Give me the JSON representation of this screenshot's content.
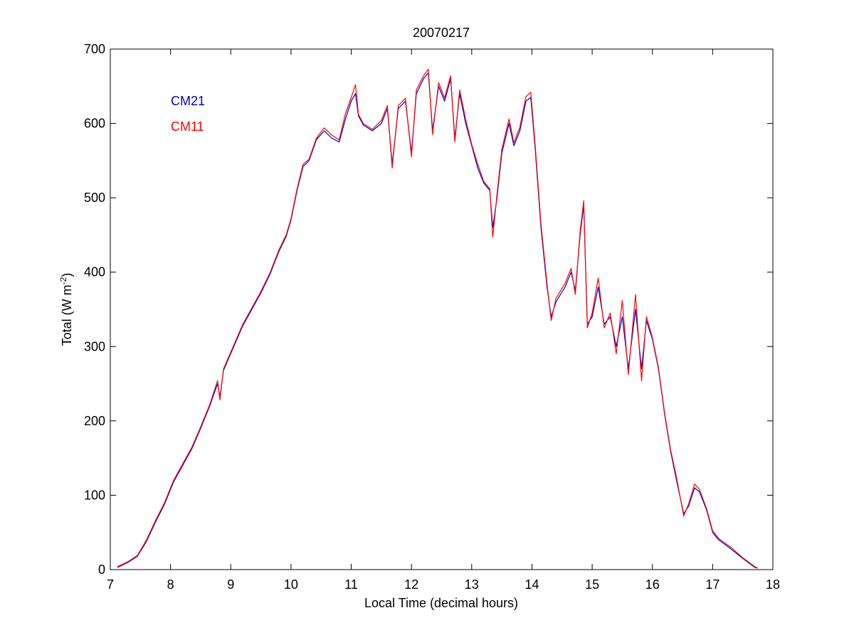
{
  "chart_data": {
    "type": "line",
    "title": "20070217",
    "xlabel": "Local Time (decimal hours)",
    "ylabel": {
      "main": "Total (W m",
      "superscript": "-2",
      "close": ")"
    },
    "xlim": [
      7,
      18
    ],
    "ylim": [
      0,
      700
    ],
    "x_ticks": [
      7,
      8,
      9,
      10,
      11,
      12,
      13,
      14,
      15,
      16,
      17,
      18
    ],
    "y_ticks": [
      0,
      100,
      200,
      300,
      400,
      500,
      600,
      700
    ],
    "grid": false,
    "legend_placement": "top-left",
    "series": [
      {
        "name": "CM21",
        "color": "#0000cc",
        "points": [
          [
            7.12,
            3
          ],
          [
            7.3,
            10
          ],
          [
            7.45,
            18
          ],
          [
            7.6,
            38
          ],
          [
            7.75,
            64
          ],
          [
            7.9,
            88
          ],
          [
            8.05,
            118
          ],
          [
            8.2,
            140
          ],
          [
            8.35,
            162
          ],
          [
            8.5,
            190
          ],
          [
            8.65,
            220
          ],
          [
            8.78,
            250
          ],
          [
            8.82,
            232
          ],
          [
            8.88,
            268
          ],
          [
            9.05,
            300
          ],
          [
            9.2,
            328
          ],
          [
            9.35,
            350
          ],
          [
            9.5,
            372
          ],
          [
            9.65,
            397
          ],
          [
            9.8,
            428
          ],
          [
            9.92,
            448
          ],
          [
            10.0,
            470
          ],
          [
            10.1,
            510
          ],
          [
            10.2,
            542
          ],
          [
            10.3,
            550
          ],
          [
            10.42,
            578
          ],
          [
            10.55,
            590
          ],
          [
            10.68,
            580
          ],
          [
            10.8,
            575
          ],
          [
            10.9,
            605
          ],
          [
            11.0,
            630
          ],
          [
            11.07,
            640
          ],
          [
            11.12,
            610
          ],
          [
            11.2,
            598
          ],
          [
            11.35,
            590
          ],
          [
            11.5,
            600
          ],
          [
            11.6,
            620
          ],
          [
            11.68,
            545
          ],
          [
            11.78,
            620
          ],
          [
            11.9,
            630
          ],
          [
            12.0,
            560
          ],
          [
            12.08,
            640
          ],
          [
            12.2,
            660
          ],
          [
            12.28,
            668
          ],
          [
            12.35,
            590
          ],
          [
            12.45,
            650
          ],
          [
            12.55,
            630
          ],
          [
            12.65,
            660
          ],
          [
            12.72,
            580
          ],
          [
            12.8,
            640
          ],
          [
            12.9,
            600
          ],
          [
            13.0,
            570
          ],
          [
            13.1,
            540
          ],
          [
            13.2,
            520
          ],
          [
            13.3,
            510
          ],
          [
            13.35,
            460
          ],
          [
            13.42,
            500
          ],
          [
            13.5,
            560
          ],
          [
            13.62,
            600
          ],
          [
            13.7,
            570
          ],
          [
            13.8,
            590
          ],
          [
            13.9,
            630
          ],
          [
            13.98,
            635
          ],
          [
            14.05,
            570
          ],
          [
            14.15,
            460
          ],
          [
            14.25,
            380
          ],
          [
            14.32,
            340
          ],
          [
            14.4,
            360
          ],
          [
            14.55,
            380
          ],
          [
            14.65,
            400
          ],
          [
            14.72,
            375
          ],
          [
            14.8,
            450
          ],
          [
            14.86,
            490
          ],
          [
            14.92,
            330
          ],
          [
            15.0,
            340
          ],
          [
            15.1,
            380
          ],
          [
            15.2,
            330
          ],
          [
            15.3,
            340
          ],
          [
            15.4,
            300
          ],
          [
            15.5,
            340
          ],
          [
            15.6,
            270
          ],
          [
            15.72,
            350
          ],
          [
            15.82,
            270
          ],
          [
            15.9,
            335
          ],
          [
            16.0,
            310
          ],
          [
            16.1,
            270
          ],
          [
            16.2,
            210
          ],
          [
            16.3,
            160
          ],
          [
            16.4,
            120
          ],
          [
            16.52,
            75
          ],
          [
            16.6,
            85
          ],
          [
            16.7,
            110
          ],
          [
            16.78,
            105
          ],
          [
            16.9,
            80
          ],
          [
            17.0,
            50
          ],
          [
            17.1,
            40
          ],
          [
            17.3,
            28
          ],
          [
            17.5,
            15
          ],
          [
            17.7,
            3
          ],
          [
            17.75,
            2
          ]
        ]
      },
      {
        "name": "CM11",
        "color": "#ff0000",
        "points": [
          [
            7.12,
            4
          ],
          [
            7.3,
            11
          ],
          [
            7.45,
            19
          ],
          [
            7.6,
            40
          ],
          [
            7.75,
            66
          ],
          [
            7.9,
            90
          ],
          [
            8.05,
            120
          ],
          [
            8.2,
            142
          ],
          [
            8.35,
            164
          ],
          [
            8.5,
            192
          ],
          [
            8.65,
            222
          ],
          [
            8.78,
            254
          ],
          [
            8.82,
            228
          ],
          [
            8.88,
            270
          ],
          [
            9.05,
            302
          ],
          [
            9.2,
            330
          ],
          [
            9.35,
            352
          ],
          [
            9.5,
            374
          ],
          [
            9.65,
            399
          ],
          [
            9.8,
            430
          ],
          [
            9.92,
            450
          ],
          [
            10.0,
            472
          ],
          [
            10.1,
            512
          ],
          [
            10.2,
            545
          ],
          [
            10.3,
            552
          ],
          [
            10.42,
            580
          ],
          [
            10.55,
            594
          ],
          [
            10.68,
            584
          ],
          [
            10.8,
            578
          ],
          [
            10.9,
            612
          ],
          [
            11.0,
            635
          ],
          [
            11.07,
            652
          ],
          [
            11.12,
            612
          ],
          [
            11.2,
            600
          ],
          [
            11.35,
            592
          ],
          [
            11.5,
            604
          ],
          [
            11.6,
            624
          ],
          [
            11.68,
            540
          ],
          [
            11.78,
            624
          ],
          [
            11.9,
            634
          ],
          [
            12.0,
            555
          ],
          [
            12.08,
            645
          ],
          [
            12.2,
            664
          ],
          [
            12.28,
            673
          ],
          [
            12.35,
            585
          ],
          [
            12.45,
            655
          ],
          [
            12.55,
            634
          ],
          [
            12.65,
            664
          ],
          [
            12.72,
            575
          ],
          [
            12.8,
            645
          ],
          [
            12.9,
            605
          ],
          [
            13.0,
            572
          ],
          [
            13.1,
            545
          ],
          [
            13.2,
            522
          ],
          [
            13.3,
            512
          ],
          [
            13.35,
            447
          ],
          [
            13.42,
            505
          ],
          [
            13.5,
            565
          ],
          [
            13.62,
            606
          ],
          [
            13.7,
            574
          ],
          [
            13.8,
            595
          ],
          [
            13.9,
            636
          ],
          [
            13.98,
            642
          ],
          [
            14.05,
            575
          ],
          [
            14.15,
            465
          ],
          [
            14.25,
            385
          ],
          [
            14.32,
            335
          ],
          [
            14.4,
            365
          ],
          [
            14.55,
            385
          ],
          [
            14.65,
            405
          ],
          [
            14.72,
            370
          ],
          [
            14.8,
            455
          ],
          [
            14.86,
            496
          ],
          [
            14.92,
            325
          ],
          [
            15.0,
            345
          ],
          [
            15.1,
            392
          ],
          [
            15.2,
            325
          ],
          [
            15.3,
            345
          ],
          [
            15.4,
            290
          ],
          [
            15.5,
            362
          ],
          [
            15.6,
            262
          ],
          [
            15.72,
            370
          ],
          [
            15.82,
            254
          ],
          [
            15.9,
            340
          ],
          [
            16.0,
            312
          ],
          [
            16.1,
            272
          ],
          [
            16.2,
            212
          ],
          [
            16.3,
            162
          ],
          [
            16.4,
            124
          ],
          [
            16.52,
            72
          ],
          [
            16.6,
            88
          ],
          [
            16.7,
            115
          ],
          [
            16.78,
            108
          ],
          [
            16.9,
            82
          ],
          [
            17.0,
            52
          ],
          [
            17.1,
            42
          ],
          [
            17.3,
            30
          ],
          [
            17.5,
            16
          ],
          [
            17.7,
            4
          ],
          [
            17.75,
            2
          ]
        ]
      }
    ]
  }
}
